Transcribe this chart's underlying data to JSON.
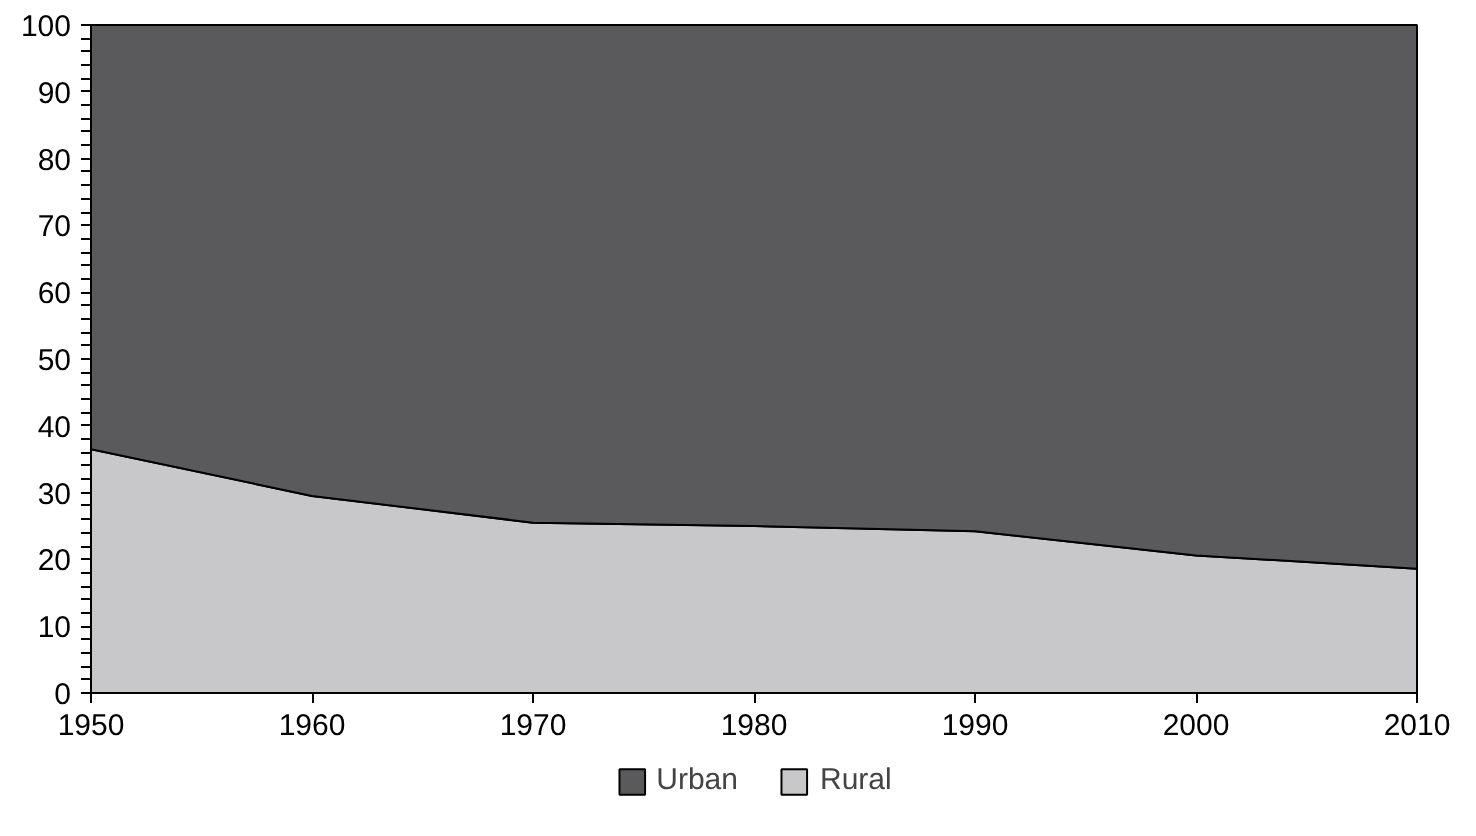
{
  "chart_data": {
    "type": "area",
    "stacked": true,
    "x": [
      1950,
      1960,
      1970,
      1980,
      1990,
      2000,
      2010
    ],
    "series": [
      {
        "name": "Rural",
        "color": "#c8c8ca",
        "values": [
          36.5,
          29.5,
          25.5,
          25,
          24.2,
          20.6,
          18.6
        ]
      },
      {
        "name": "Urban",
        "color": "#5a5a5c",
        "values": [
          63.5,
          70.5,
          74.5,
          75,
          75.8,
          79.4,
          81.4
        ]
      }
    ],
    "xlim": [
      1950,
      2010
    ],
    "xticks": [
      1950,
      1960,
      1970,
      1980,
      1990,
      2000,
      2010
    ],
    "ylim": [
      0,
      100
    ],
    "yticks": [
      0,
      {
        "value": 2,
        "label": null
      },
      {
        "value": 4,
        "label": null
      },
      {
        "value": 6,
        "label": null
      },
      {
        "value": 8,
        "label": null
      },
      10,
      {
        "value": 12,
        "label": null
      },
      {
        "value": 14,
        "label": null
      },
      {
        "value": 16,
        "label": null
      },
      {
        "value": 18,
        "label": null
      },
      20,
      {
        "value": 22,
        "label": null
      },
      {
        "value": 24,
        "label": null
      },
      {
        "value": 26,
        "label": null
      },
      {
        "value": 28,
        "label": null
      },
      30,
      {
        "value": 32,
        "label": null
      },
      {
        "value": 34,
        "label": null
      },
      {
        "value": 36,
        "label": null
      },
      {
        "value": 38,
        "label": null
      },
      40,
      {
        "value": 42,
        "label": null
      },
      {
        "value": 44,
        "label": null
      },
      {
        "value": 46,
        "label": null
      },
      {
        "value": 48,
        "label": null
      },
      50,
      {
        "value": 52,
        "label": null
      },
      {
        "value": 54,
        "label": null
      },
      {
        "value": 56,
        "label": null
      },
      {
        "value": 58,
        "label": null
      },
      60,
      {
        "value": 62,
        "label": null
      },
      {
        "value": 64,
        "label": null
      },
      {
        "value": 66,
        "label": null
      },
      {
        "value": 68,
        "label": null
      },
      70,
      {
        "value": 72,
        "label": null
      },
      {
        "value": 74,
        "label": null
      },
      {
        "value": 76,
        "label": null
      },
      {
        "value": 78,
        "label": null
      },
      80,
      {
        "value": 82,
        "label": null
      },
      {
        "value": 84,
        "label": null
      },
      {
        "value": 86,
        "label": null
      },
      {
        "value": 88,
        "label": null
      },
      90,
      {
        "value": 92,
        "label": null
      },
      {
        "value": 94,
        "label": null
      },
      {
        "value": 96,
        "label": null
      },
      {
        "value": 98,
        "label": null
      },
      100
    ],
    "legend": "bottom"
  }
}
